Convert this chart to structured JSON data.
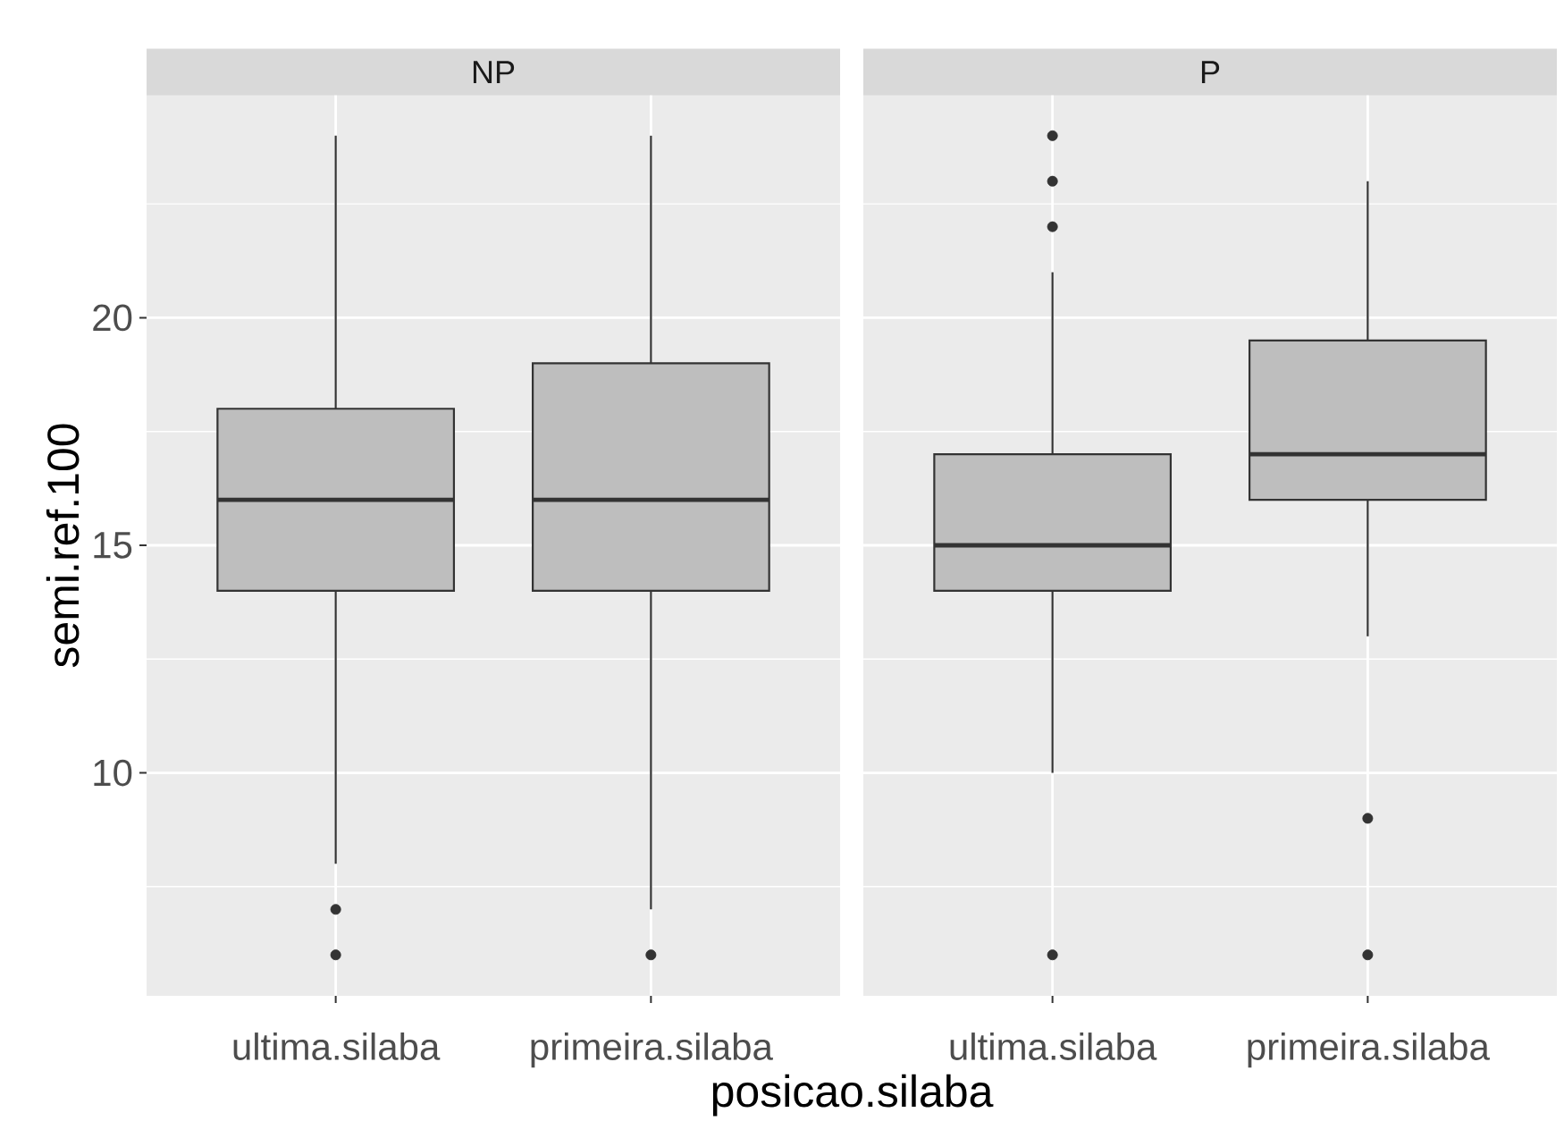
{
  "chart_data": [
    {
      "type": "box",
      "title": "NP",
      "categories": [
        "ultima.silaba",
        "primeira.silaba"
      ],
      "boxes": [
        {
          "low": 8,
          "q1": 14,
          "median": 16,
          "q3": 18,
          "high": 24,
          "outliers": [
            7,
            6
          ]
        },
        {
          "low": 7,
          "q1": 14,
          "median": 16,
          "q3": 19,
          "high": 24,
          "outliers": [
            6
          ]
        }
      ],
      "color": "#bebebe",
      "ylim": [
        5.1,
        24.9
      ],
      "yticks": [
        10,
        15,
        20
      ],
      "xlabel": "posicao.silaba",
      "ylabel": "semi.ref.100",
      "grid": true
    },
    {
      "type": "box",
      "title": "P",
      "categories": [
        "ultima.silaba",
        "primeira.silaba"
      ],
      "boxes": [
        {
          "low": 10,
          "q1": 14,
          "median": 15,
          "q3": 17,
          "high": 21,
          "outliers": [
            22,
            23,
            24,
            6
          ]
        },
        {
          "low": 13,
          "q1": 16,
          "median": 17,
          "q3": 19.5,
          "high": 23,
          "outliers": [
            9,
            6
          ]
        }
      ],
      "color": "#bebebe",
      "ylim": [
        5.1,
        24.9
      ],
      "yticks": [
        10,
        15,
        20
      ],
      "grid": true,
      "tick_labels": "x"
    }
  ]
}
